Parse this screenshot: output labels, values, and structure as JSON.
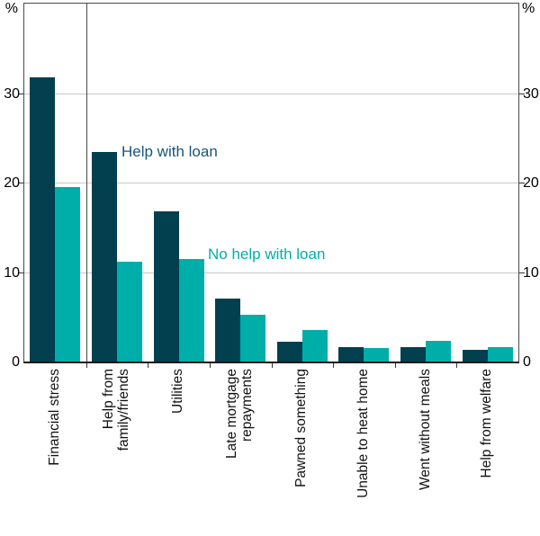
{
  "axis_units": {
    "left": "%",
    "right": "%"
  },
  "chart_data": {
    "type": "bar",
    "categories": [
      "Financial stress",
      "Help from family/friends",
      "Utilities",
      "Late mortgage repayments",
      "Pawned something",
      "Unable to heat home",
      "Went without meals",
      "Help from welfare"
    ],
    "category_lines": [
      [
        "Financial stress"
      ],
      [
        "Help from",
        "family/friends"
      ],
      [
        "Utilities"
      ],
      [
        "Late mortgage",
        "repayments"
      ],
      [
        "Pawned something"
      ],
      [
        "Unable to heat home"
      ],
      [
        "Went without meals"
      ],
      [
        "Help from welfare"
      ]
    ],
    "series": [
      {
        "name": "Help with loan",
        "color": "#023F4F",
        "label_color": "#17557A",
        "values": [
          31.8,
          23.4,
          16.8,
          7.0,
          2.2,
          1.6,
          1.6,
          1.3
        ]
      },
      {
        "name": "No help with loan",
        "color": "#00AEA9",
        "label_color": "#00AEA9",
        "values": [
          19.5,
          11.2,
          11.5,
          5.2,
          3.5,
          1.5,
          2.3,
          1.6
        ]
      }
    ],
    "ylabel_unit": "%",
    "ylim": [
      0,
      40
    ],
    "yticks": [
      0,
      10,
      20,
      30
    ],
    "grid": "horizontal",
    "legend_position": "inline-annotations",
    "separator_after_category": 0
  }
}
